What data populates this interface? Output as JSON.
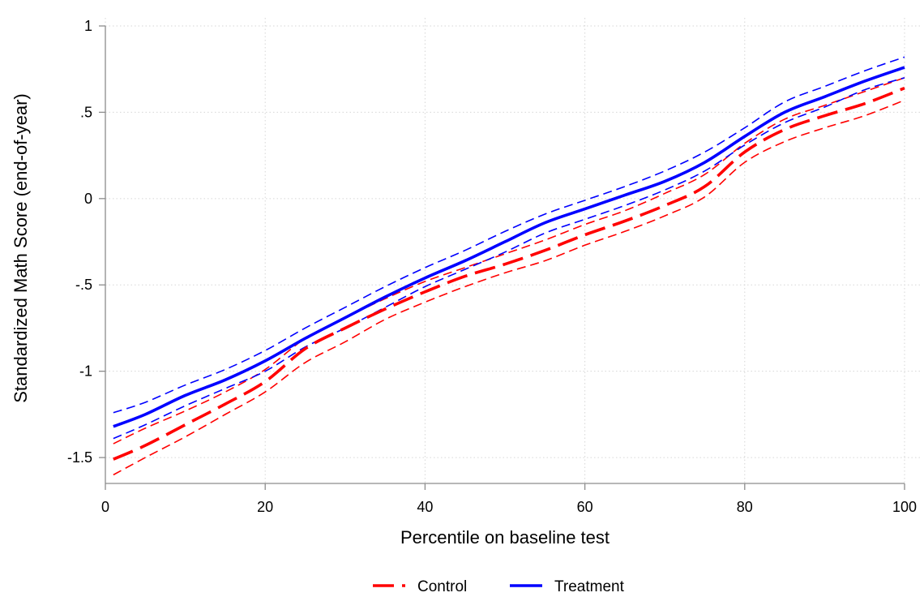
{
  "chart_data": {
    "type": "line",
    "xlabel": "Percentile on baseline test",
    "ylabel": "Standardized Math Score (end-of-year)",
    "xlim": [
      0,
      100
    ],
    "ylim": [
      -1.65,
      1.0
    ],
    "xticks": [
      0,
      20,
      40,
      60,
      80,
      100
    ],
    "xtick_labels": [
      "0",
      "20",
      "40",
      "60",
      "80",
      "100"
    ],
    "yticks": [
      1,
      0.5,
      0,
      -0.5,
      -1,
      -1.5
    ],
    "ytick_labels": [
      "1",
      ".5",
      "0",
      "-.5",
      "-1",
      "-1.5"
    ],
    "grid": true,
    "legend_position": "bottom-center",
    "x": [
      1,
      5,
      10,
      15,
      20,
      25,
      30,
      35,
      40,
      45,
      50,
      55,
      60,
      65,
      70,
      75,
      80,
      85,
      90,
      95,
      100
    ],
    "series": [
      {
        "name": "Control",
        "color": "#ff0000",
        "style": "long-dash",
        "values": [
          -1.51,
          -1.43,
          -1.31,
          -1.19,
          -1.06,
          -0.87,
          -0.75,
          -0.64,
          -0.54,
          -0.45,
          -0.38,
          -0.3,
          -0.21,
          -0.13,
          -0.04,
          0.07,
          0.27,
          0.4,
          0.48,
          0.55,
          0.64
        ],
        "ci_lower": [
          -1.6,
          -1.5,
          -1.38,
          -1.25,
          -1.12,
          -0.95,
          -0.83,
          -0.7,
          -0.6,
          -0.51,
          -0.43,
          -0.36,
          -0.27,
          -0.19,
          -0.1,
          0.01,
          0.21,
          0.33,
          0.41,
          0.48,
          0.57
        ],
        "ci_upper": [
          -1.42,
          -1.33,
          -1.23,
          -1.12,
          -0.99,
          -0.81,
          -0.69,
          -0.58,
          -0.48,
          -0.4,
          -0.32,
          -0.24,
          -0.15,
          -0.07,
          0.03,
          0.14,
          0.32,
          0.46,
          0.54,
          0.62,
          0.7
        ]
      },
      {
        "name": "Treatment",
        "color": "#0000ff",
        "style": "solid",
        "values": [
          -1.32,
          -1.25,
          -1.14,
          -1.05,
          -0.94,
          -0.81,
          -0.69,
          -0.57,
          -0.46,
          -0.36,
          -0.25,
          -0.14,
          -0.06,
          0.02,
          0.1,
          0.21,
          0.36,
          0.5,
          0.59,
          0.68,
          0.76
        ],
        "ci_lower": [
          -1.39,
          -1.31,
          -1.2,
          -1.1,
          -1.0,
          -0.86,
          -0.75,
          -0.63,
          -0.51,
          -0.41,
          -0.31,
          -0.2,
          -0.12,
          -0.04,
          0.05,
          0.16,
          0.31,
          0.44,
          0.53,
          0.63,
          0.7
        ],
        "ci_upper": [
          -1.24,
          -1.18,
          -1.08,
          -0.99,
          -0.88,
          -0.75,
          -0.63,
          -0.51,
          -0.4,
          -0.3,
          -0.19,
          -0.09,
          -0.01,
          0.07,
          0.16,
          0.27,
          0.41,
          0.56,
          0.65,
          0.74,
          0.82
        ]
      }
    ]
  }
}
